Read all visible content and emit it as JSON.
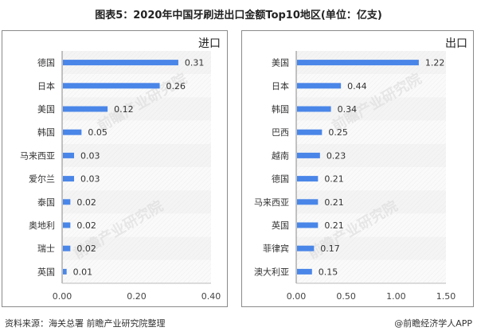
{
  "title": "图表5：2020年中国牙刷进出口金额Top10地区(单位：亿支)",
  "footer": {
    "source": "资料来源：海关总署 前瞻产业研究院整理",
    "brand": "@前瞻经济学人APP"
  },
  "watermark": "前瞻产业研究院",
  "colors": {
    "bar": "#4a86e8",
    "stripe": "#ececec",
    "axis": "#888888"
  },
  "chart_data": [
    {
      "type": "bar",
      "orientation": "horizontal",
      "title": "进口",
      "categories": [
        "德国",
        "日本",
        "美国",
        "韩国",
        "马来西亚",
        "爱尔兰",
        "泰国",
        "奥地利",
        "瑞士",
        "英国"
      ],
      "values": [
        0.31,
        0.26,
        0.12,
        0.05,
        0.03,
        0.03,
        0.02,
        0.02,
        0.02,
        0.01
      ],
      "value_labels": [
        "0.31",
        "0.26",
        "0.12",
        "0.05",
        "0.03",
        "0.03",
        "0.02",
        "0.02",
        "0.02",
        "0.01"
      ],
      "xlim": [
        0,
        0.4
      ],
      "xticks": [
        "0.00",
        "0.20",
        "0.40"
      ],
      "xtick_values": [
        0,
        0.2,
        0.4
      ]
    },
    {
      "type": "bar",
      "orientation": "horizontal",
      "title": "出口",
      "categories": [
        "美国",
        "日本",
        "韩国",
        "巴西",
        "越南",
        "德国",
        "马来西亚",
        "英国",
        "菲律宾",
        "澳大利亚"
      ],
      "values": [
        1.22,
        0.44,
        0.34,
        0.25,
        0.23,
        0.21,
        0.21,
        0.21,
        0.17,
        0.15
      ],
      "value_labels": [
        "1.22",
        "0.44",
        "0.34",
        "0.25",
        "0.23",
        "0.21",
        "0.21",
        "0.21",
        "0.17",
        "0.15"
      ],
      "xlim": [
        0,
        1.5
      ],
      "xticks": [
        "0.00",
        "0.50",
        "1.00",
        "1.50"
      ],
      "xtick_values": [
        0,
        0.5,
        1.0,
        1.5
      ]
    }
  ]
}
